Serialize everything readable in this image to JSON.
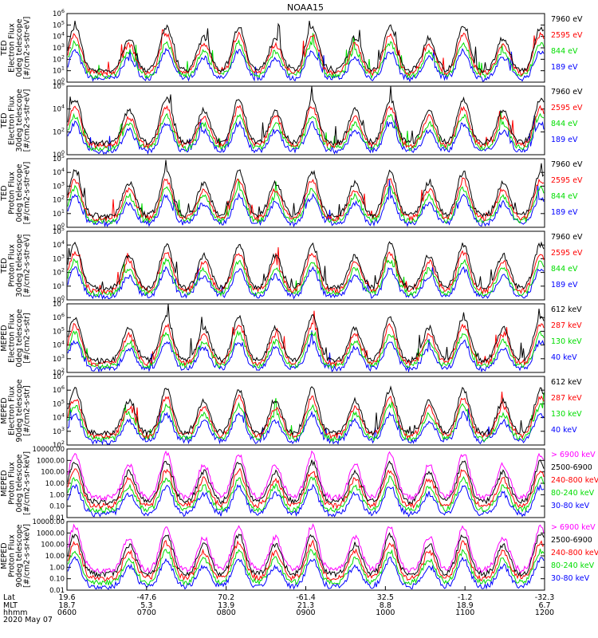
{
  "chart_data": {
    "type": "line",
    "title": "NOAA15",
    "date": "2020 May 07",
    "x": {
      "row_labels": [
        "Lat",
        "MLT",
        "hhmm"
      ],
      "ticks": [
        {
          "lat": "19.6",
          "mlt": "18.7",
          "hhmm": "0600"
        },
        {
          "lat": "-47.6",
          "mlt": "5.3",
          "hhmm": "0700"
        },
        {
          "lat": "70.2",
          "mlt": "13.9",
          "hhmm": "0800"
        },
        {
          "lat": "-61.4",
          "mlt": "21.3",
          "hhmm": "0900"
        },
        {
          "lat": "32.5",
          "mlt": "8.8",
          "hhmm": "1000"
        },
        {
          "lat": "-1.2",
          "mlt": "18.9",
          "hhmm": "1100"
        },
        {
          "lat": "-32.3",
          "mlt": "6.7",
          "hhmm": "1200"
        }
      ],
      "range_hours": [
        6,
        12
      ],
      "passes_ut_hours": [
        6.1,
        6.78,
        7.25,
        7.72,
        8.16,
        8.62,
        9.08,
        9.62,
        10.06,
        10.55,
        10.98,
        11.48,
        11.95
      ]
    },
    "panels": [
      {
        "id": "ted-e-0",
        "ylabel": [
          "TED",
          "Electron Flux",
          "0deg telescope",
          "[#/cm2-s-str-eV]"
        ],
        "yscale": "log",
        "ylim": [
          1,
          1000000
        ],
        "ytick_labels": [
          "10^0",
          "10^1",
          "10^2",
          "10^3",
          "10^4",
          "10^5",
          "10^6"
        ],
        "channels": [
          {
            "label": "7960 eV",
            "color": "#000000"
          },
          {
            "label": "2595 eV",
            "color": "#ff0000"
          },
          {
            "label": "844 eV",
            "color": "#00dd00"
          },
          {
            "label": "189 eV",
            "color": "#0000ff"
          }
        ]
      },
      {
        "id": "ted-e-30",
        "ylabel": [
          "TED",
          "Electron Flux",
          "30deg telescope",
          "[#/cm2-s-str-eV]"
        ],
        "yscale": "log",
        "ylim": [
          1,
          1000000
        ],
        "ytick_labels": [
          "10^0",
          "10^2",
          "10^4",
          "10^6"
        ],
        "channels": [
          {
            "label": "7960 eV",
            "color": "#000000"
          },
          {
            "label": "2595 eV",
            "color": "#ff0000"
          },
          {
            "label": "844 eV",
            "color": "#00dd00"
          },
          {
            "label": "189 eV",
            "color": "#0000ff"
          }
        ]
      },
      {
        "id": "ted-p-0",
        "ylabel": [
          "TED",
          "Proton Flux",
          "0deg telescope",
          "[#/cm2-s-str-eV]"
        ],
        "yscale": "log",
        "ylim": [
          1,
          100000
        ],
        "ytick_labels": [
          "10^0",
          "10^1",
          "10^2",
          "10^3",
          "10^4",
          "10^5"
        ],
        "channels": [
          {
            "label": "7960 eV",
            "color": "#000000"
          },
          {
            "label": "2595 eV",
            "color": "#ff0000"
          },
          {
            "label": "844 eV",
            "color": "#00dd00"
          },
          {
            "label": "189 eV",
            "color": "#0000ff"
          }
        ]
      },
      {
        "id": "ted-p-30",
        "ylabel": [
          "TED",
          "Proton Flux",
          "30deg telescope",
          "[#/cm2-s-str-eV]"
        ],
        "yscale": "log",
        "ylim": [
          1,
          100000
        ],
        "ytick_labels": [
          "10^0",
          "10^1",
          "10^2",
          "10^3",
          "10^4",
          "10^5"
        ],
        "channels": [
          {
            "label": "7960 eV",
            "color": "#000000"
          },
          {
            "label": "2595 eV",
            "color": "#ff0000"
          },
          {
            "label": "844 eV",
            "color": "#00dd00"
          },
          {
            "label": "189 eV",
            "color": "#0000ff"
          }
        ]
      },
      {
        "id": "meped-e-0",
        "ylabel": [
          "MEPED",
          "Electron Flux",
          "0deg telescope",
          "[#/cm2-s-str]"
        ],
        "yscale": "log",
        "ylim": [
          100,
          10000000
        ],
        "ytick_labels": [
          "10^2",
          "10^3",
          "10^4",
          "10^5",
          "10^6",
          "10^7"
        ],
        "channels": [
          {
            "label": "612 keV",
            "color": "#000000"
          },
          {
            "label": "287 keV",
            "color": "#ff0000"
          },
          {
            "label": "130 keV",
            "color": "#00dd00"
          },
          {
            "label": "40 keV",
            "color": "#0000ff"
          }
        ]
      },
      {
        "id": "meped-e-90",
        "ylabel": [
          "MEPED",
          "Electron Flux",
          "90deg telescope",
          "[#/cm2-s-str]"
        ],
        "yscale": "log",
        "ylim": [
          100,
          10000000
        ],
        "ytick_labels": [
          "10^2",
          "10^3",
          "10^4",
          "10^5",
          "10^6",
          "10^7"
        ],
        "channels": [
          {
            "label": "612 keV",
            "color": "#000000"
          },
          {
            "label": "287 keV",
            "color": "#ff0000"
          },
          {
            "label": "130 keV",
            "color": "#00dd00"
          },
          {
            "label": "40 keV",
            "color": "#0000ff"
          }
        ]
      },
      {
        "id": "meped-p-0",
        "ylabel": [
          "MEPED",
          "Proton Flux",
          "0deg telescope",
          "[#/cm2-s-sr-keV]"
        ],
        "yscale": "log",
        "ylim": [
          0.01,
          10000
        ],
        "ytick_labels": [
          "0.01",
          "0.10",
          "1.00",
          "10.00",
          "100.00",
          "1000.00",
          "10000.00"
        ],
        "channels": [
          {
            "label": "> 6900 keV",
            "color": "#ff00ff"
          },
          {
            "label": "2500-6900",
            "color": "#000000"
          },
          {
            "label": "240-800 keV",
            "color": "#ff0000"
          },
          {
            "label": "80-240 keV",
            "color": "#00dd00"
          },
          {
            "label": "30-80 keV",
            "color": "#0000ff"
          }
        ]
      },
      {
        "id": "meped-p-90",
        "ylabel": [
          "MEPED",
          "Proton Flux",
          "90deg telescope",
          "[#/cm2-s-sr-keV]"
        ],
        "yscale": "log",
        "ylim": [
          0.01,
          10000
        ],
        "ytick_labels": [
          "0.01",
          "0.10",
          "1.00",
          "10.00",
          "100.00",
          "1000.00",
          "10000.00"
        ],
        "channels": [
          {
            "label": "> 6900 keV",
            "color": "#ff00ff"
          },
          {
            "label": "2500-6900",
            "color": "#000000"
          },
          {
            "label": "240-800 keV",
            "color": "#ff0000"
          },
          {
            "label": "80-240 keV",
            "color": "#00dd00"
          },
          {
            "label": "30-80 keV",
            "color": "#0000ff"
          }
        ]
      }
    ]
  }
}
